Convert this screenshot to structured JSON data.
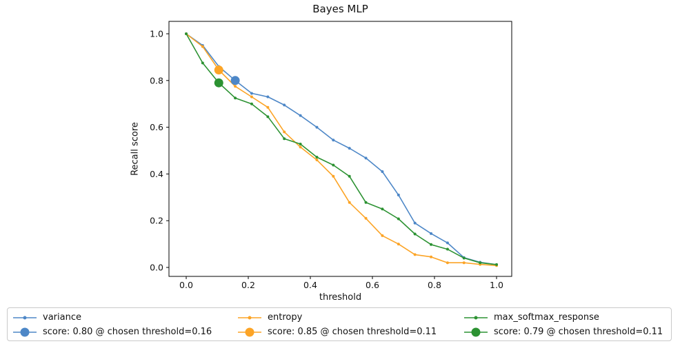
{
  "figure_title": "Bayes MLP",
  "chart_data": {
    "type": "line",
    "title": "Bayes MLP",
    "xlabel": "threshold",
    "ylabel": "Recall score",
    "xlim": [
      -0.055,
      1.05
    ],
    "ylim": [
      -0.05,
      1.05
    ],
    "grid": false,
    "legend_position": "bottom",
    "xtick_labels": [
      "0.0",
      "0.2",
      "0.4",
      "0.6",
      "0.8",
      "1.0"
    ],
    "ytick_labels": [
      "0.0",
      "0.2",
      "0.4",
      "0.6",
      "0.8",
      "1.0"
    ],
    "x": [
      0.0,
      0.053,
      0.105,
      0.158,
      0.211,
      0.263,
      0.316,
      0.368,
      0.421,
      0.474,
      0.526,
      0.579,
      0.632,
      0.684,
      0.737,
      0.789,
      0.842,
      0.895,
      0.947,
      1.0
    ],
    "series": [
      {
        "name": "variance",
        "color": "#4d87c7",
        "values": [
          1.0,
          0.95,
          0.86,
          0.8,
          0.745,
          0.73,
          0.695,
          0.65,
          0.6,
          0.545,
          0.51,
          0.468,
          0.41,
          0.31,
          0.19,
          0.145,
          0.105,
          0.042,
          0.022,
          0.012
        ]
      },
      {
        "name": "entropy",
        "color": "#fca426",
        "values": [
          1.0,
          0.945,
          0.845,
          0.775,
          0.73,
          0.685,
          0.58,
          0.515,
          0.46,
          0.39,
          0.278,
          0.21,
          0.136,
          0.1,
          0.055,
          0.045,
          0.02,
          0.02,
          0.013,
          0.008
        ]
      },
      {
        "name": "max_softmax_response",
        "color": "#2c9232",
        "values": [
          1.0,
          0.875,
          0.79,
          0.725,
          0.7,
          0.645,
          0.551,
          0.528,
          0.472,
          0.438,
          0.39,
          0.278,
          0.25,
          0.208,
          0.143,
          0.098,
          0.078,
          0.04,
          0.02,
          0.012
        ]
      }
    ],
    "chosen_points": [
      {
        "series": "variance",
        "threshold": 0.158,
        "score": 0.8,
        "color": "#4d87c7"
      },
      {
        "series": "entropy",
        "threshold": 0.105,
        "score": 0.845,
        "color": "#fca426"
      },
      {
        "series": "max_softmax_response",
        "threshold": 0.105,
        "score": 0.79,
        "color": "#2c9232"
      }
    ]
  },
  "legend": {
    "items": [
      {
        "label": "variance",
        "color": "#4d87c7",
        "marker": "small"
      },
      {
        "label": "score: 0.80 @ chosen threshold=0.16",
        "color": "#4d87c7",
        "marker": "big"
      },
      {
        "label": "entropy",
        "color": "#fca426",
        "marker": "small"
      },
      {
        "label": "score: 0.85 @ chosen threshold=0.11",
        "color": "#fca426",
        "marker": "big"
      },
      {
        "label": "max_softmax_response",
        "color": "#2c9232",
        "marker": "small"
      },
      {
        "label": "score: 0.79 @ chosen threshold=0.11",
        "color": "#2c9232",
        "marker": "big"
      }
    ]
  }
}
